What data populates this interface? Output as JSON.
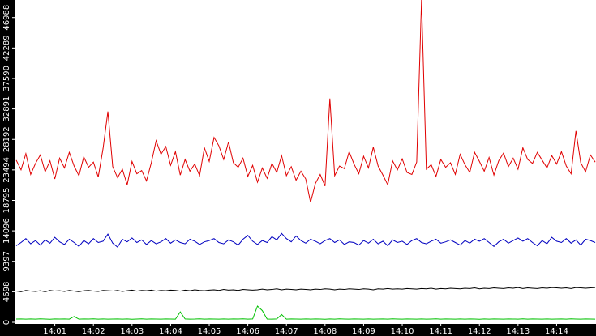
{
  "chart_data": {
    "type": "line",
    "x": [
      0,
      0.125,
      0.25,
      0.375,
      0.5,
      0.625,
      0.75,
      0.875,
      1,
      1.125,
      1.25,
      1.375,
      1.5,
      1.625,
      1.75,
      1.875,
      2,
      2.125,
      2.25,
      2.375,
      2.5,
      2.625,
      2.75,
      2.875,
      3,
      3.125,
      3.25,
      3.375,
      3.5,
      3.625,
      3.75,
      3.875,
      4,
      4.125,
      4.25,
      4.375,
      4.5,
      4.625,
      4.75,
      4.875,
      5,
      5.125,
      5.25,
      5.375,
      5.5,
      5.625,
      5.75,
      5.875,
      6,
      6.125,
      6.25,
      6.375,
      6.5,
      6.625,
      6.75,
      6.875,
      7,
      7.125,
      7.25,
      7.375,
      7.5,
      7.625,
      7.75,
      7.875,
      8,
      8.125,
      8.25,
      8.375,
      8.5,
      8.625,
      8.75,
      8.875,
      9,
      9.125,
      9.25,
      9.375,
      9.5,
      9.625,
      9.75,
      9.875,
      10,
      10.125,
      10.25,
      10.375,
      10.5,
      10.625,
      10.75,
      10.875,
      11,
      11.125,
      11.25,
      11.375,
      11.5,
      11.625,
      11.75,
      11.875,
      12,
      12.125,
      12.25,
      12.375,
      12.5,
      12.625,
      12.75,
      12.875,
      13,
      13.125,
      13.25,
      13.375,
      13.5,
      13.625,
      13.75,
      13.875,
      14,
      14.125,
      14.25,
      14.375,
      14.5,
      14.625,
      14.75,
      14.875,
      15
    ],
    "series": [
      {
        "color": "#e00000",
        "values": [
          25000,
          23500,
          26000,
          22800,
          24500,
          25800,
          23200,
          24900,
          22100,
          25300,
          23800,
          26200,
          24100,
          22600,
          25500,
          23900,
          24700,
          22400,
          26800,
          32500,
          24000,
          22300,
          23600,
          21200,
          24800,
          22900,
          23400,
          21800,
          24600,
          28000,
          25900,
          27100,
          24200,
          26300,
          22700,
          25100,
          23300,
          24400,
          22600,
          26900,
          24800,
          28500,
          27200,
          25100,
          27800,
          24600,
          23900,
          25300,
          22500,
          24200,
          21600,
          23800,
          22200,
          24500,
          23100,
          25700,
          22600,
          24000,
          21900,
          23300,
          22100,
          18500,
          21400,
          22800,
          21000,
          34500,
          22600,
          24100,
          23700,
          26300,
          24400,
          22900,
          25600,
          23800,
          27000,
          24100,
          22700,
          21200,
          24900,
          23500,
          25200,
          23100,
          22800,
          24700,
          49700,
          23600,
          24300,
          22500,
          25100,
          23900,
          24600,
          22800,
          25900,
          24300,
          23100,
          26200,
          24800,
          23300,
          25400,
          22700,
          24900,
          26100,
          24000,
          25300,
          23600,
          26900,
          25100,
          24500,
          26200,
          25000,
          23800,
          25700,
          24400,
          26300,
          24100,
          22900,
          29500,
          24600,
          23200,
          25800,
          24700
        ]
      },
      {
        "color": "#0000c0",
        "values": [
          11800,
          12300,
          12900,
          12100,
          12600,
          11900,
          12700,
          12200,
          13100,
          12400,
          12000,
          12800,
          12300,
          11700,
          12600,
          12100,
          12900,
          12300,
          12500,
          13600,
          12200,
          11600,
          12800,
          12400,
          13000,
          12300,
          12700,
          12000,
          12600,
          12100,
          12400,
          12900,
          12200,
          12700,
          12300,
          12100,
          12800,
          12500,
          12000,
          12400,
          12600,
          12900,
          12300,
          12100,
          12700,
          12400,
          11900,
          12800,
          13400,
          12500,
          12000,
          12600,
          12300,
          13200,
          12700,
          13700,
          12900,
          12400,
          13300,
          12600,
          12200,
          12800,
          12500,
          12100,
          12600,
          12900,
          12300,
          12700,
          12000,
          12400,
          12300,
          11900,
          12600,
          12200,
          12800,
          12100,
          12500,
          11800,
          12700,
          12300,
          12500,
          12000,
          12600,
          12900,
          12300,
          12100,
          12500,
          12800,
          12200,
          12400,
          12700,
          12300,
          11900,
          12600,
          12200,
          12800,
          12500,
          12900,
          12300,
          11700,
          12400,
          12800,
          12200,
          12600,
          13000,
          12500,
          12900,
          12300,
          11800,
          12600,
          12100,
          13100,
          12500,
          12300,
          12900,
          12200,
          12700,
          11900,
          12800,
          12600,
          12300
        ]
      },
      {
        "color": "#000000",
        "values": [
          4800,
          4700,
          4900,
          4800,
          4750,
          4850,
          4700,
          4900,
          4800,
          4850,
          4750,
          4900,
          4800,
          4700,
          4850,
          4900,
          4800,
          4750,
          4900,
          4850,
          4800,
          4900,
          4750,
          4850,
          4950,
          4800,
          4900,
          4850,
          4950,
          4800,
          4900,
          4850,
          4950,
          4900,
          4800,
          4950,
          4850,
          5000,
          4900,
          4850,
          4950,
          5000,
          4900,
          5050,
          4950,
          5000,
          4900,
          5050,
          5000,
          4950,
          5000,
          5100,
          5000,
          5050,
          5150,
          5000,
          5100,
          5050,
          5000,
          5100,
          5050,
          5000,
          5100,
          5050,
          5150,
          5100,
          5000,
          5100,
          5050,
          5150,
          5100,
          5050,
          5150,
          5100,
          5000,
          5150,
          5100,
          5200,
          5100,
          5150,
          5100,
          5200,
          5150,
          5100,
          5200,
          5150,
          5250,
          5100,
          5200,
          5150,
          5250,
          5200,
          5150,
          5250,
          5200,
          5300,
          5150,
          5250,
          5200,
          5300,
          5250,
          5200,
          5300,
          5250,
          5350,
          5200,
          5300,
          5250,
          5200,
          5300,
          5250,
          5350,
          5300,
          5250,
          5300,
          5200,
          5350,
          5300,
          5250,
          5300,
          5350
        ]
      },
      {
        "color": "#00c000",
        "values": [
          500,
          520,
          480,
          510,
          490,
          530,
          500,
          470,
          510,
          500,
          520,
          490,
          900,
          480,
          510,
          500,
          530,
          490,
          510,
          480,
          500,
          520,
          490,
          510,
          470,
          500,
          530,
          480,
          510,
          500,
          490,
          520,
          500,
          480,
          1600,
          510,
          490,
          500,
          530,
          480,
          510,
          500,
          490,
          520,
          480,
          510,
          500,
          530,
          490,
          510,
          2500,
          1800,
          500,
          480,
          520,
          1200,
          490,
          510,
          500,
          480,
          520,
          490,
          510,
          500,
          470,
          510,
          490,
          530,
          500,
          480,
          510,
          500,
          490,
          520,
          480,
          500,
          510,
          490,
          530,
          500,
          480,
          520,
          500,
          490,
          510,
          480,
          500,
          530,
          490,
          510,
          500,
          480,
          520,
          490,
          510,
          500,
          470,
          510,
          490,
          520,
          500,
          480,
          510,
          500,
          490,
          530,
          480,
          510,
          500,
          490,
          520,
          480,
          500,
          510,
          490,
          530,
          500,
          480,
          510,
          500,
          490
        ]
      }
    ],
    "xlim": [
      0,
      15.02
    ],
    "ylim": [
      0,
      49700
    ],
    "xticks": [
      {
        "value": 1,
        "label": "14:01"
      },
      {
        "value": 2,
        "label": "14:02"
      },
      {
        "value": 3,
        "label": "14:03"
      },
      {
        "value": 4,
        "label": "14:04"
      },
      {
        "value": 5,
        "label": "14:05"
      },
      {
        "value": 6,
        "label": "14:06"
      },
      {
        "value": 7,
        "label": "14:07"
      },
      {
        "value": 8,
        "label": "14:08"
      },
      {
        "value": 9,
        "label": "14:09"
      },
      {
        "value": 10,
        "label": "14:10"
      },
      {
        "value": 11,
        "label": "14:11"
      },
      {
        "value": 12,
        "label": "14:12"
      },
      {
        "value": 13,
        "label": "14:13"
      },
      {
        "value": 14,
        "label": "14:14"
      }
    ],
    "yticks": [
      0,
      4698,
      9397,
      14096,
      18795,
      23494,
      28192,
      32891,
      37590,
      42289,
      46988
    ]
  }
}
